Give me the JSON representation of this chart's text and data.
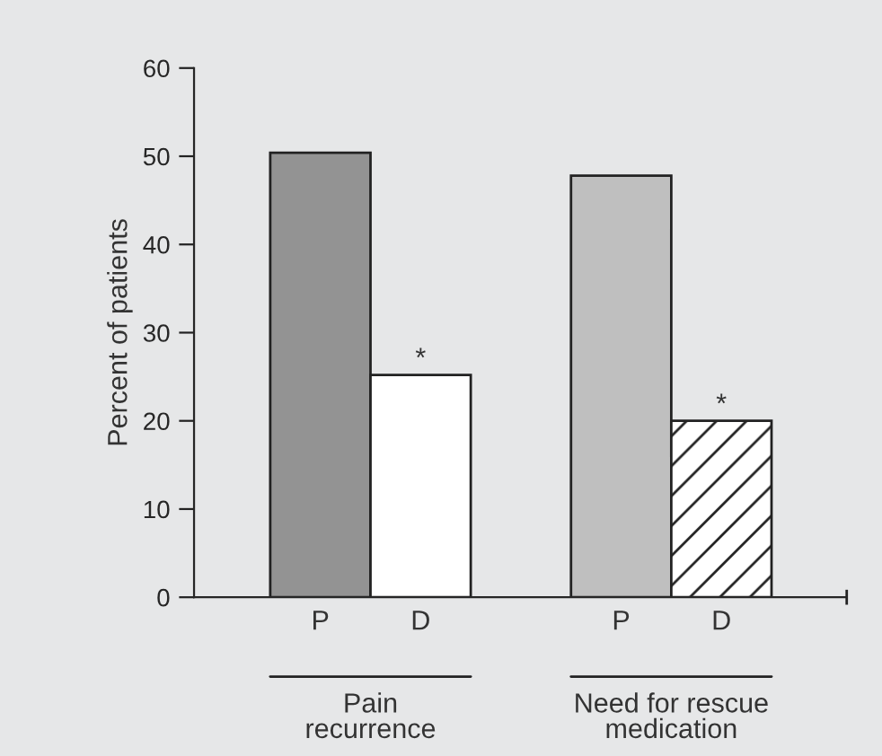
{
  "chart_data": {
    "type": "bar",
    "ylabel": "Percent of patients",
    "categories": [
      "P",
      "D",
      "P",
      "D"
    ],
    "values": [
      50.4,
      25.2,
      47.8,
      20.0
    ],
    "colors": [
      "#939393",
      "#ffffff",
      "#bfbfbf",
      "#ffffff"
    ],
    "ylim": [
      0,
      60
    ],
    "yticks": [
      0,
      10,
      20,
      30,
      40,
      50,
      60
    ],
    "grid": false,
    "legend": false,
    "annotations": [
      "Pain\nrecurrence",
      "Need for rescue\nmedication",
      "*",
      "*"
    ]
  }
}
